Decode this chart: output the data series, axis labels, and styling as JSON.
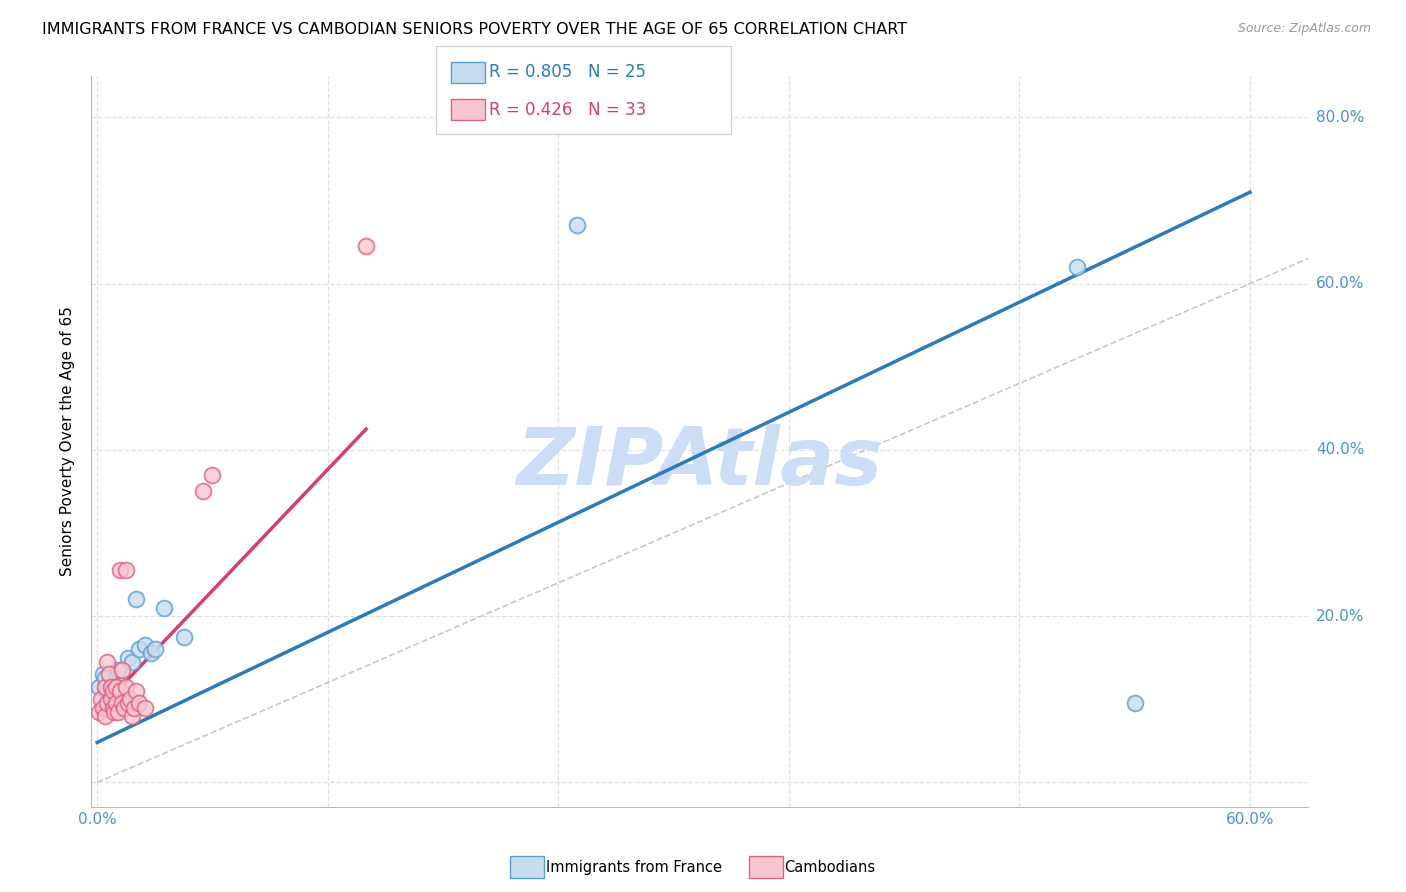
{
  "title": "IMMIGRANTS FROM FRANCE VS CAMBODIAN SENIORS POVERTY OVER THE AGE OF 65 CORRELATION CHART",
  "source": "Source: ZipAtlas.com",
  "ylabel": "Seniors Poverty Over the Age of 65",
  "xlim": [
    -0.003,
    0.63
  ],
  "ylim": [
    -0.03,
    0.85
  ],
  "xtick_values": [
    0.0,
    0.12,
    0.24,
    0.36,
    0.48,
    0.6
  ],
  "xtick_labels": [
    "0.0%",
    "",
    "",
    "",
    "",
    "60.0%"
  ],
  "ytick_values": [
    0.0,
    0.2,
    0.4,
    0.6,
    0.8
  ],
  "ytick_labels": [
    "",
    "20.0%",
    "40.0%",
    "60.0%",
    "80.0%"
  ],
  "tick_color": "#4a90d9",
  "blue_color": "#c6ddf0",
  "blue_edge_color": "#5b9bd5",
  "pink_color": "#f9c6d0",
  "pink_edge_color": "#e06080",
  "blue_line_color": "#2b7bba",
  "pink_line_color": "#d44070",
  "ref_line_color": "#c8c8c8",
  "watermark": "ZIPAtlas",
  "watermark_color": "#ccddf5",
  "legend_r1": "R = 0.805",
  "legend_n1": "N = 25",
  "legend_r2": "R = 0.426",
  "legend_n2": "N = 33",
  "blue_scatter_x": [
    0.001,
    0.003,
    0.004,
    0.005,
    0.006,
    0.007,
    0.008,
    0.009,
    0.01,
    0.011,
    0.012,
    0.013,
    0.015,
    0.016,
    0.018,
    0.02,
    0.022,
    0.025,
    0.028,
    0.03,
    0.035,
    0.045,
    0.25,
    0.51,
    0.54
  ],
  "blue_scatter_y": [
    0.115,
    0.13,
    0.125,
    0.11,
    0.1,
    0.105,
    0.095,
    0.115,
    0.125,
    0.135,
    0.11,
    0.09,
    0.105,
    0.15,
    0.145,
    0.22,
    0.16,
    0.165,
    0.155,
    0.16,
    0.21,
    0.175,
    0.67,
    0.62,
    0.095
  ],
  "pink_scatter_x": [
    0.001,
    0.002,
    0.003,
    0.004,
    0.004,
    0.005,
    0.005,
    0.006,
    0.007,
    0.007,
    0.008,
    0.008,
    0.009,
    0.01,
    0.01,
    0.011,
    0.012,
    0.012,
    0.013,
    0.013,
    0.014,
    0.015,
    0.015,
    0.016,
    0.017,
    0.018,
    0.019,
    0.02,
    0.022,
    0.025,
    0.055,
    0.06,
    0.14
  ],
  "pink_scatter_y": [
    0.085,
    0.1,
    0.09,
    0.08,
    0.115,
    0.095,
    0.145,
    0.13,
    0.1,
    0.115,
    0.09,
    0.11,
    0.085,
    0.095,
    0.115,
    0.085,
    0.11,
    0.255,
    0.095,
    0.135,
    0.09,
    0.115,
    0.255,
    0.095,
    0.1,
    0.08,
    0.09,
    0.11,
    0.095,
    0.09,
    0.35,
    0.37,
    0.645
  ],
  "blue_line_x": [
    0.0,
    0.6
  ],
  "blue_line_y": [
    0.048,
    0.71
  ],
  "pink_line_x": [
    0.0,
    0.14
  ],
  "pink_line_y": [
    0.085,
    0.425
  ],
  "ref_line_x": [
    0.0,
    0.83
  ],
  "ref_line_y": [
    0.0,
    0.83
  ],
  "background_color": "#ffffff",
  "grid_color": "#e0e0e0",
  "title_fontsize": 11.5,
  "tick_fontsize": 11,
  "source_fontsize": 9,
  "ylabel_fontsize": 11
}
